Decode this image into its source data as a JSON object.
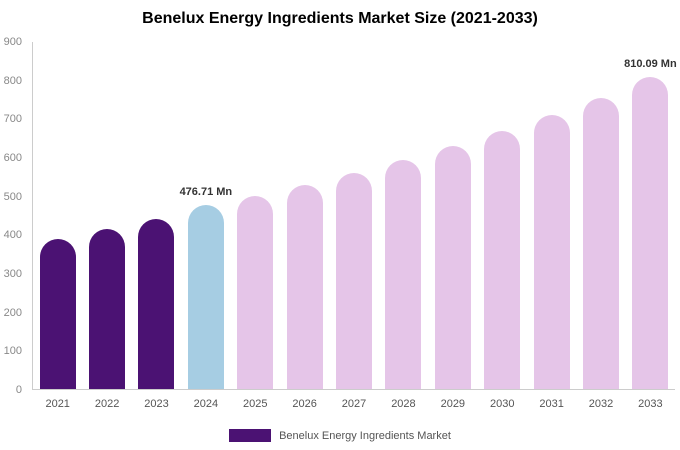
{
  "title": "Benelux Energy Ingredients Market Size (2021-2033)",
  "legend": {
    "label": "Benelux Energy Ingredients Market",
    "color": "#4b1273"
  },
  "colors": {
    "historical": "#4b1273",
    "current": "#a6cde3",
    "forecast": "#e5c5e8",
    "axis_line": "#cccccc"
  },
  "chart_data": {
    "type": "bar",
    "title": "Benelux Energy Ingredients Market Size (2021-2033)",
    "categories": [
      "2021",
      "2022",
      "2023",
      "2024",
      "2025",
      "2026",
      "2027",
      "2028",
      "2029",
      "2030",
      "2031",
      "2032",
      "2033"
    ],
    "values": [
      390,
      414,
      440,
      476.71,
      500,
      528,
      560,
      594,
      631,
      669,
      711,
      756,
      810.09
    ],
    "bar_colors": [
      "#4b1273",
      "#4b1273",
      "#4b1273",
      "#a6cde3",
      "#e5c5e8",
      "#e5c5e8",
      "#e5c5e8",
      "#e5c5e8",
      "#e5c5e8",
      "#e5c5e8",
      "#e5c5e8",
      "#e5c5e8",
      "#e5c5e8"
    ],
    "annotations": [
      {
        "index": 3,
        "text": "476.71 Mn"
      },
      {
        "index": 12,
        "text": "810.09 Mn"
      }
    ],
    "xlabel": "",
    "ylabel": "",
    "ylim": [
      0,
      900
    ],
    "yticks": [
      0,
      100,
      200,
      300,
      400,
      500,
      600,
      700,
      800,
      900
    ],
    "grid": false,
    "legend_position": "bottom"
  }
}
